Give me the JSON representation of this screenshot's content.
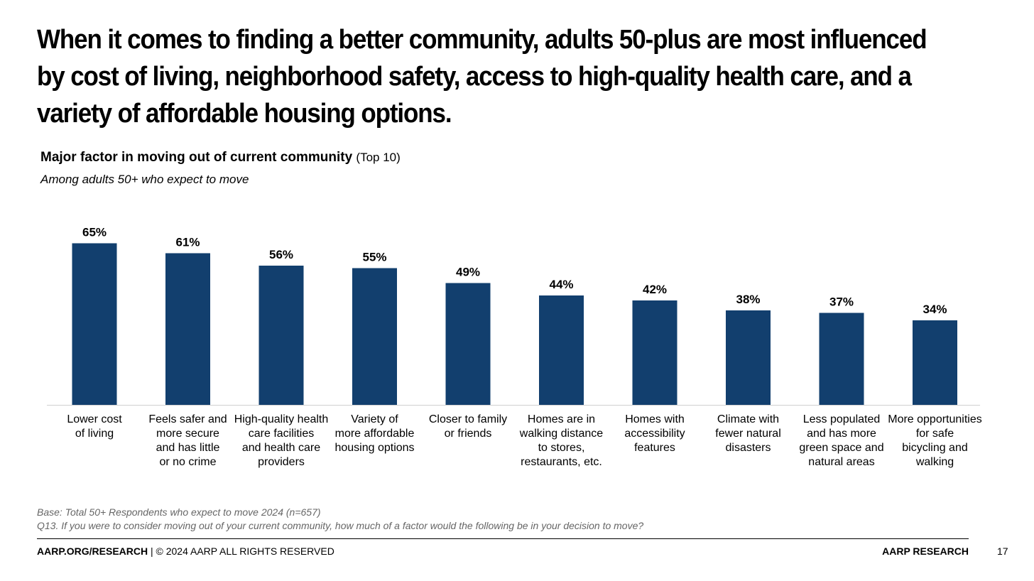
{
  "slide": {
    "headline": "When it comes to finding a better community, adults 50-plus are most influenced by cost of living, neighborhood safety, access to high-quality health care, and a variety of affordable housing options.",
    "chart_title": "Major factor in moving out of current community",
    "chart_title_suffix": "(Top 10)",
    "chart_subtitle": "Among adults 50+ who expect to move",
    "base_note": "Base: Total 50+ Respondents who expect to move 2024 (n=657)",
    "question_note": "Q13. If you were to consider moving out of your current community, how much of a factor would the following be in your decision to move?",
    "footer_left_bold": "AARP.ORG/RESEARCH",
    "footer_left_rest": " | © 2024 AARP ALL RIGHTS RESERVED",
    "footer_right": "AARP RESEARCH",
    "page_number": "17"
  },
  "chart_data": {
    "type": "bar",
    "categories": [
      [
        "Lower cost",
        "of living"
      ],
      [
        "Feels safer and",
        "more secure",
        "and has little",
        "or no crime"
      ],
      [
        "High-quality health",
        "care facilities",
        "and health care",
        "providers"
      ],
      [
        "Variety of",
        "more affordable",
        "housing options"
      ],
      [
        "Closer to family",
        "or friends"
      ],
      [
        "Homes are in",
        "walking distance",
        "to stores,",
        "restaurants, etc."
      ],
      [
        "Homes with",
        "accessibility",
        "features"
      ],
      [
        "Climate with",
        "fewer natural",
        "disasters"
      ],
      [
        "Less populated",
        "and has more",
        "green space and",
        "natural areas"
      ],
      [
        "More opportunities",
        "for safe",
        "bicycling and",
        "walking"
      ]
    ],
    "values": [
      65,
      61,
      56,
      55,
      49,
      44,
      42,
      38,
      37,
      34
    ],
    "value_labels": [
      "65%",
      "61%",
      "56%",
      "55%",
      "49%",
      "44%",
      "42%",
      "38%",
      "37%",
      "34%"
    ],
    "ylim": [
      0,
      70
    ],
    "grid": false,
    "bar_color": "#123F6E"
  }
}
